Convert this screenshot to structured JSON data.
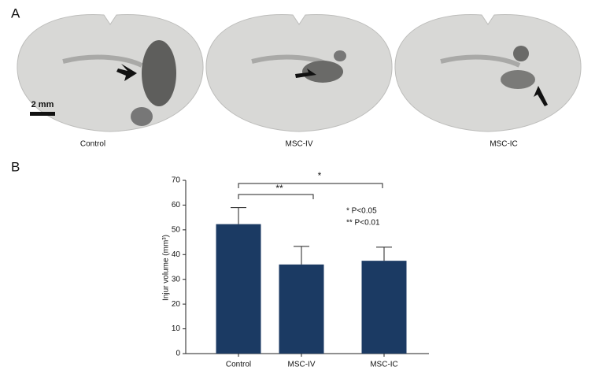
{
  "panel_labels": [
    "A",
    "B"
  ],
  "panel_a": {
    "scale_bar": "2 mm",
    "captions": [
      "Control",
      "MSC-IV",
      "MSC-IC"
    ]
  },
  "chart_data": {
    "type": "bar",
    "ylabel": "Injur volume (mm³)",
    "categories": [
      "Control",
      "MSC-IV",
      "MSC-IC"
    ],
    "values": [
      52.3,
      36,
      37.5
    ],
    "errors": [
      6.7,
      7.3,
      5.5
    ],
    "color": "#1b3a63",
    "ylim": [
      0,
      70
    ],
    "yticks": [
      0,
      10,
      20,
      30,
      40,
      50,
      60,
      70
    ],
    "grid": false,
    "significance": [
      "**",
      "*"
    ],
    "notes": [
      "* P<0.05",
      "** P<0.01"
    ]
  }
}
